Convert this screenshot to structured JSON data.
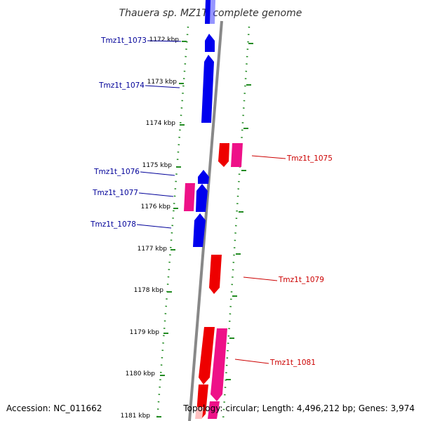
{
  "title": "Thauera sp. MZ1T, complete genome",
  "footer": {
    "accession": "Accession: NC_011662",
    "topology": "Topology: circular; Length: 4,496,212 bp; Genes: 3,974"
  },
  "colors": {
    "backbone": "#888888",
    "ruler": "#228B22",
    "forward_gene": "#0000ee",
    "reverse_gene": "#ee0000",
    "reverse_gene_alt": "#ee1188",
    "forward_label": "#000099",
    "reverse_label": "#cc0000"
  },
  "kbp_ticks": [
    "1172 kbp",
    "1173 kbp",
    "1174 kbp",
    "1175 kbp",
    "1176 kbp",
    "1177 kbp",
    "1178 kbp",
    "1179 kbp",
    "1180 kbp",
    "1181 kbp"
  ],
  "gene_labels": {
    "tmz1t_1073": "Tmz1t_1073",
    "tmz1t_1074": "Tmz1t_1074",
    "tmz1t_1075": "Tmz1t_1075",
    "tmz1t_1076": "Tmz1t_1076",
    "tmz1t_1077": "Tmz1t_1077",
    "tmz1t_1078": "Tmz1t_1078",
    "tmz1t_1079": "Tmz1t_1079",
    "tmz1t_1081": "Tmz1t_1081"
  }
}
